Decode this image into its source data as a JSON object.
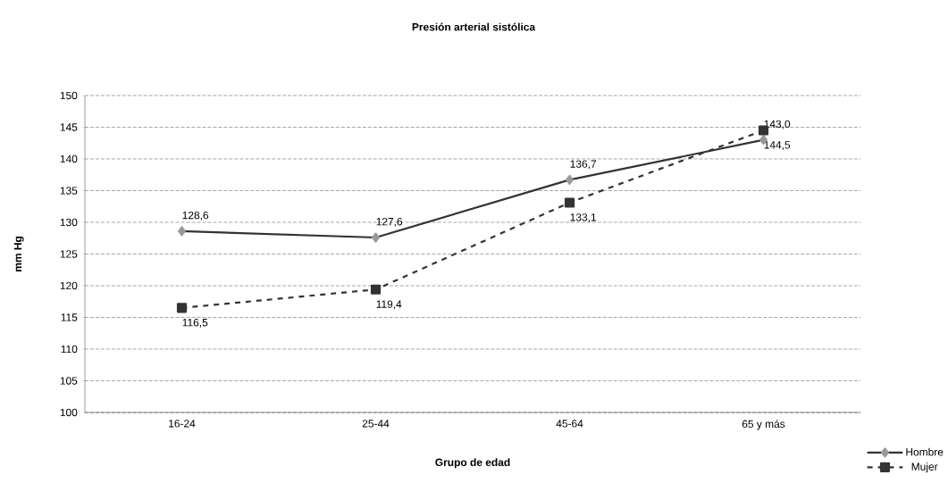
{
  "chart_data": {
    "type": "line",
    "title": "Presión arterial sistólica",
    "xlabel": "Grupo de edad",
    "ylabel": "mm Hg",
    "categories": [
      "16-24",
      "25-44",
      "45-64",
      "65 y más"
    ],
    "ylim": [
      100,
      150
    ],
    "yticks": [
      100,
      105,
      110,
      115,
      120,
      125,
      130,
      135,
      140,
      145,
      150
    ],
    "grid": "y",
    "legend": "bottom right",
    "series": [
      {
        "name": "Hombre",
        "color": "#333333",
        "marker": "diamond",
        "line_style": "solid",
        "values": [
          128.6,
          127.6,
          136.7,
          143.0
        ],
        "value_labels": [
          "128,6",
          "127,6",
          "136,7",
          "143,0"
        ]
      },
      {
        "name": "Mujer",
        "color": "#333333",
        "marker": "square",
        "line_style": "dashed",
        "values": [
          116.5,
          119.4,
          133.1,
          144.5
        ],
        "value_labels": [
          "116,5",
          "119,4",
          "133,1",
          "144,5"
        ]
      }
    ]
  }
}
